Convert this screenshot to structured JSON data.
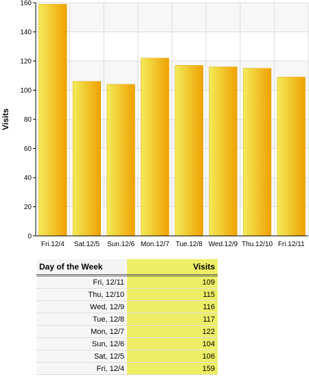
{
  "chart_data": {
    "type": "bar",
    "categories": [
      "Fri.12/4",
      "Sat.12/5",
      "Sun.12/6",
      "Mon.12/7",
      "Tue.12/8",
      "Wed.12/9",
      "Thu.12/10",
      "Fri.12/11"
    ],
    "values": [
      159,
      106,
      104,
      122,
      117,
      116,
      115,
      109
    ],
    "ylabel": "Visits",
    "ylim": [
      0,
      160
    ],
    "yticks": [
      0,
      20,
      40,
      60,
      80,
      100,
      120,
      140,
      160
    ],
    "grid": true,
    "bar_color_light": "#f2ec5a",
    "bar_color_dark": "#f0a000"
  },
  "table": {
    "headers": {
      "day": "Day of the Week",
      "visits": "Visits"
    },
    "rows": [
      {
        "day": "Fri, 12/11",
        "visits": "109"
      },
      {
        "day": "Thu, 12/10",
        "visits": "115"
      },
      {
        "day": "Wed, 12/9",
        "visits": "116"
      },
      {
        "day": "Tue, 12/8",
        "visits": "117"
      },
      {
        "day": "Mon, 12/7",
        "visits": "122"
      },
      {
        "day": "Sun, 12/6",
        "visits": "104"
      },
      {
        "day": "Sat, 12/5",
        "visits": "106"
      },
      {
        "day": "Fri, 12/4",
        "visits": "159"
      }
    ]
  }
}
